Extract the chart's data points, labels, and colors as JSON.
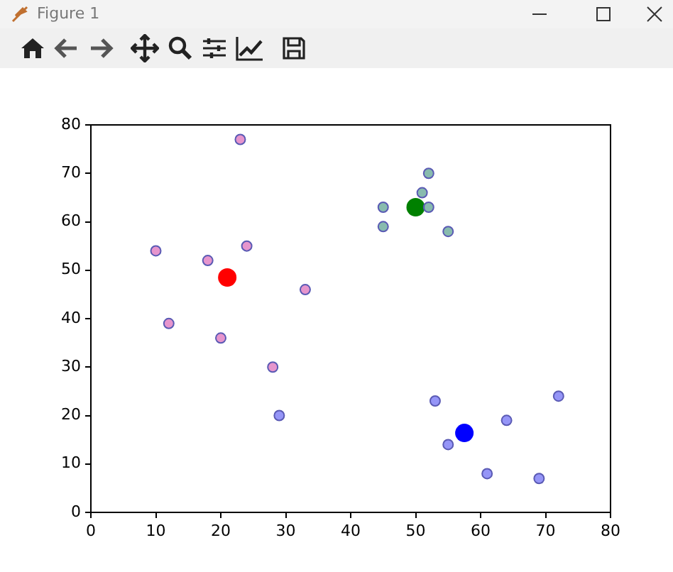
{
  "chart_data": {
    "type": "scatter",
    "title": "Figure 1",
    "xlim": [
      0,
      80
    ],
    "ylim": [
      0,
      80
    ],
    "xticks": [
      0,
      10,
      20,
      30,
      40,
      50,
      60,
      70,
      80
    ],
    "yticks": [
      0,
      10,
      20,
      30,
      40,
      50,
      60,
      70,
      80
    ],
    "grid": false,
    "legend": false,
    "marker": "circle",
    "series": [
      {
        "color": "#e07ac0",
        "x": [
          10,
          12,
          18,
          20,
          23,
          24,
          28,
          33
        ],
        "values": [
          54,
          39,
          52,
          36,
          77,
          55,
          30,
          46
        ]
      },
      {
        "color": "#6aaa9a",
        "x": [
          45,
          45,
          51,
          52,
          52,
          55
        ],
        "values": [
          63,
          59,
          66,
          70,
          63,
          58
        ]
      },
      {
        "color": "#7a7af5",
        "x": [
          29,
          53,
          55,
          61,
          64,
          69,
          72
        ],
        "values": [
          20,
          23,
          14,
          8,
          19,
          7,
          24
        ]
      },
      {
        "color": "#ff0000",
        "x": [
          21
        ],
        "values": [
          48.5
        ]
      },
      {
        "color": "#008000",
        "x": [
          50
        ],
        "values": [
          63
        ]
      },
      {
        "color": "#0000ff",
        "x": [
          57.5
        ],
        "values": [
          16.4
        ]
      }
    ]
  }
}
